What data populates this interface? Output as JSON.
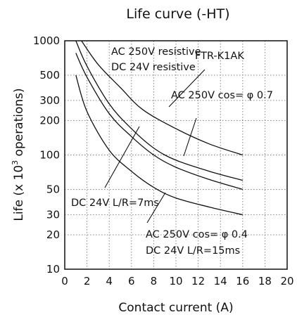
{
  "chart_data": {
    "type": "line",
    "title": "Life curve (-HT)",
    "xlabel": "Contact current (A)",
    "ylabel_prefix": "Life (x 10",
    "ylabel_sup": "3",
    "ylabel_suffix": " operations)",
    "xlim": [
      0,
      20
    ],
    "ylim": [
      10,
      1000
    ],
    "y_scale": "log",
    "grid": true,
    "x_ticks": [
      "0",
      "2",
      "4",
      "6",
      "8",
      "10",
      "12",
      "14",
      "16",
      "18",
      "20"
    ],
    "y_ticks": [
      "10",
      "20",
      "30",
      "50",
      "100",
      "200",
      "300",
      "500",
      "1000"
    ],
    "x_tick_values": [
      0,
      2,
      4,
      6,
      8,
      10,
      12,
      14,
      16,
      18,
      20
    ],
    "y_tick_values": [
      10,
      20,
      30,
      50,
      100,
      200,
      300,
      500,
      1000
    ],
    "model_label": "FTR-K1AK",
    "series": [
      {
        "label_lines": [
          "AC 250V resistive",
          "DC 24V resistive"
        ],
        "x": [
          1.5,
          3,
          5,
          7,
          10,
          13,
          16
        ],
        "y": [
          1000,
          620,
          390,
          250,
          170,
          125,
          100
        ]
      },
      {
        "label_lines": [
          "AC 250V cos= φ 0.7"
        ],
        "x": [
          1,
          2,
          4,
          6,
          8,
          10,
          13,
          16
        ],
        "y": [
          1000,
          600,
          280,
          170,
          115,
          90,
          72,
          60
        ]
      },
      {
        "label_lines": [
          "DC 24V L/R=7ms"
        ],
        "x": [
          1,
          2,
          4,
          6,
          8,
          10,
          13,
          16
        ],
        "y": [
          780,
          480,
          230,
          145,
          100,
          78,
          61,
          50
        ]
      },
      {
        "label_lines": [
          "AC 250V cos= φ 0.4",
          "DC 24V L/R=15ms"
        ],
        "x": [
          1,
          2,
          4,
          6,
          8,
          10,
          13,
          16
        ],
        "y": [
          500,
          240,
          110,
          72,
          52,
          42,
          35,
          30
        ]
      }
    ]
  }
}
